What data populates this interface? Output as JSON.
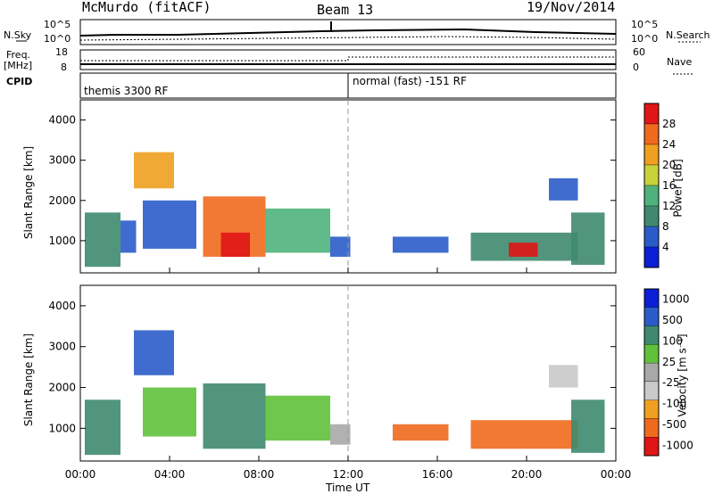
{
  "header": {
    "station": "McMurdo (fitACF)",
    "beam": "Beam 13",
    "date": "19/Nov/2014"
  },
  "left_labels": {
    "nsky": "N.Sky",
    "freq_line1": "Freq.",
    "freq_line2": "[MHz]",
    "cpid": "CPID"
  },
  "right_labels": {
    "nsearch": "N.Search",
    "nave": "Nave"
  },
  "noise_ticks_left": [
    "10^5",
    "10^0"
  ],
  "noise_ticks_right": [
    "10^5",
    "10^0"
  ],
  "freq_ticks": [
    "18",
    "8"
  ],
  "nave_ticks": [
    "60",
    "0"
  ],
  "cpid_labels": [
    "themis 3300 RF",
    "normal (fast) -151 RF"
  ],
  "colors": {
    "power_scale": [
      "#0a1fd6",
      "#2a5cc9",
      "#3f8a6f",
      "#4fb27c",
      "#c8d23a",
      "#f0a020",
      "#f06a1e",
      "#e01515"
    ],
    "velocity_scale": [
      "#e01515",
      "#f06a1e",
      "#f0a020",
      "#c9c9c9",
      "#a8a8a8",
      "#5fc23a",
      "#3f8a6f",
      "#2a5cc9",
      "#0a1fd6"
    ]
  },
  "chart_data": [
    {
      "type": "heatmap",
      "name": "power",
      "ylabel": "Slant Range [km]",
      "yticks": [
        "1000",
        "2000",
        "3000",
        "4000"
      ],
      "ylim": [
        200,
        4500
      ],
      "colorbar_label": "Power [dB]",
      "colorbar_ticks": [
        "4",
        "8",
        "12",
        "16",
        "20",
        "24",
        "28"
      ],
      "regions": [
        {
          "t0": 0.2,
          "t1": 1.8,
          "r0": 350,
          "r1": 1700,
          "level": 2
        },
        {
          "t0": 1.8,
          "t1": 2.5,
          "r0": 700,
          "r1": 1500,
          "level": 1
        },
        {
          "t0": 2.4,
          "t1": 4.2,
          "r0": 2300,
          "r1": 3200,
          "level": 5
        },
        {
          "t0": 2.8,
          "t1": 5.2,
          "r0": 800,
          "r1": 2000,
          "level": 1
        },
        {
          "t0": 5.5,
          "t1": 8.3,
          "r0": 600,
          "r1": 2100,
          "level": 6
        },
        {
          "t0": 6.3,
          "t1": 7.6,
          "r0": 600,
          "r1": 1200,
          "level": 7
        },
        {
          "t0": 8.3,
          "t1": 11.2,
          "r0": 700,
          "r1": 1800,
          "level": 3
        },
        {
          "t0": 11.2,
          "t1": 12.1,
          "r0": 600,
          "r1": 1100,
          "level": 1
        },
        {
          "t0": 14.0,
          "t1": 16.5,
          "r0": 700,
          "r1": 1100,
          "level": 1
        },
        {
          "t0": 17.5,
          "t1": 22.3,
          "r0": 500,
          "r1": 1200,
          "level": 2
        },
        {
          "t0": 19.2,
          "t1": 20.5,
          "r0": 600,
          "r1": 950,
          "level": 7
        },
        {
          "t0": 22.0,
          "t1": 23.5,
          "r0": 400,
          "r1": 1700,
          "level": 2
        },
        {
          "t0": 21.0,
          "t1": 22.3,
          "r0": 2000,
          "r1": 2550,
          "level": 1
        }
      ]
    },
    {
      "type": "heatmap",
      "name": "velocity",
      "ylabel": "Slant Range [km]",
      "yticks": [
        "1000",
        "2000",
        "3000",
        "4000"
      ],
      "ylim": [
        200,
        4500
      ],
      "xlabel": "Time UT",
      "xticks": [
        "00:00",
        "04:00",
        "08:00",
        "12:00",
        "16:00",
        "20:00",
        "00:00"
      ],
      "xlim": [
        0,
        24
      ],
      "colorbar_label": "Velocity [m s⁻¹]",
      "colorbar_ticks": [
        "1000",
        "500",
        "100",
        "25",
        "-25",
        "-100",
        "-500",
        "-1000"
      ],
      "regions": [
        {
          "t0": 0.2,
          "t1": 1.8,
          "r0": 350,
          "r1": 1700,
          "level": 6
        },
        {
          "t0": 2.4,
          "t1": 4.2,
          "r0": 2300,
          "r1": 3400,
          "level": 7
        },
        {
          "t0": 2.8,
          "t1": 5.2,
          "r0": 800,
          "r1": 2000,
          "level": 5
        },
        {
          "t0": 5.5,
          "t1": 8.3,
          "r0": 500,
          "r1": 2100,
          "level": 6
        },
        {
          "t0": 8.3,
          "t1": 11.2,
          "r0": 700,
          "r1": 1800,
          "level": 5
        },
        {
          "t0": 11.2,
          "t1": 12.1,
          "r0": 600,
          "r1": 1100,
          "level": 4
        },
        {
          "t0": 14.0,
          "t1": 16.5,
          "r0": 700,
          "r1": 1100,
          "level": 1
        },
        {
          "t0": 17.5,
          "t1": 22.3,
          "r0": 500,
          "r1": 1200,
          "level": 1
        },
        {
          "t0": 22.0,
          "t1": 23.5,
          "r0": 400,
          "r1": 1700,
          "level": 6
        },
        {
          "t0": 21.0,
          "t1": 22.3,
          "r0": 2000,
          "r1": 2550,
          "level": 3
        }
      ]
    }
  ],
  "ylim": [
    200,
    4500
  ]
}
